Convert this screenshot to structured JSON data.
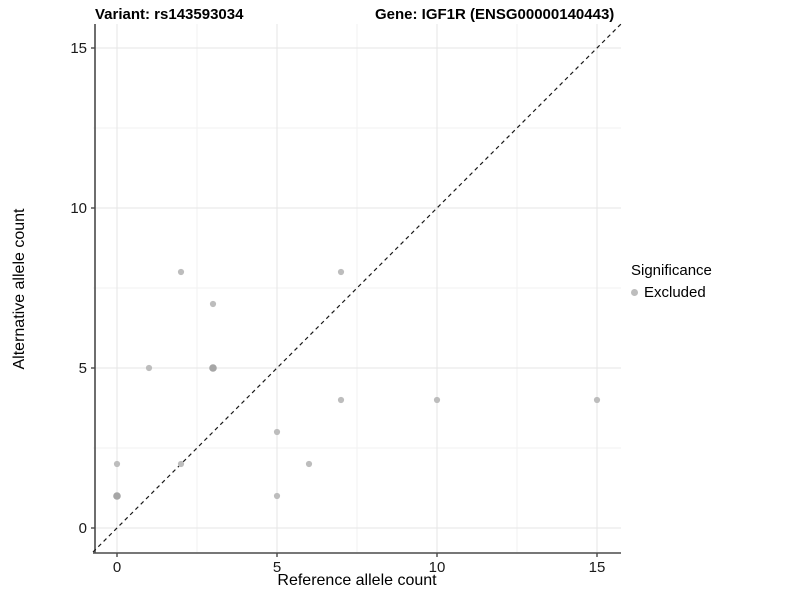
{
  "titles": {
    "variant": "Variant: rs143593034",
    "gene": "Gene: IGF1R (ENSG00000140443)"
  },
  "chart_data": {
    "type": "scatter",
    "xlabel": "Reference allele count",
    "ylabel": "Alternative allele count",
    "x_ticks": [
      "0",
      "5",
      "10",
      "15"
    ],
    "y_ticks": [
      "0",
      "5",
      "10",
      "15"
    ],
    "x_tick_values": [
      0,
      5,
      10,
      15
    ],
    "y_tick_values": [
      0,
      5,
      10,
      15
    ],
    "minor_tick_values": [
      2.5,
      7.5,
      12.5
    ],
    "xlim": [
      -0.75,
      15.75
    ],
    "ylim": [
      -0.75,
      15.75
    ],
    "grid": "major-and-minor",
    "identity_line": {
      "style": "dashed",
      "x1": -0.75,
      "y1": -0.75,
      "x2": 15.75,
      "y2": 15.75
    },
    "series": [
      {
        "name": "Excluded",
        "points": [
          {
            "x": 0,
            "y": 1,
            "overlap": true
          },
          {
            "x": 0,
            "y": 2
          },
          {
            "x": 1,
            "y": 5
          },
          {
            "x": 2,
            "y": 2
          },
          {
            "x": 2,
            "y": 8
          },
          {
            "x": 3,
            "y": 5,
            "overlap": true
          },
          {
            "x": 3,
            "y": 7
          },
          {
            "x": 5,
            "y": 1
          },
          {
            "x": 5,
            "y": 3
          },
          {
            "x": 6,
            "y": 2
          },
          {
            "x": 7,
            "y": 4
          },
          {
            "x": 7,
            "y": 8
          },
          {
            "x": 10,
            "y": 4
          },
          {
            "x": 15,
            "y": 4
          }
        ]
      }
    ],
    "legend": {
      "title": "Significance",
      "position": "right",
      "items": [
        {
          "label": "Excluded",
          "color": "#bdbdbd"
        }
      ]
    }
  },
  "colors": {
    "point": "#bdbdbd",
    "point_overlap": "#a6a6a6",
    "grid_major": "#e5e5e5",
    "grid_minor": "#f2f2f2",
    "axis_line": "#4a4a4a",
    "tick_label": "#1a1a1a",
    "identity_line": "#1a1a1a",
    "background": "#ffffff"
  }
}
